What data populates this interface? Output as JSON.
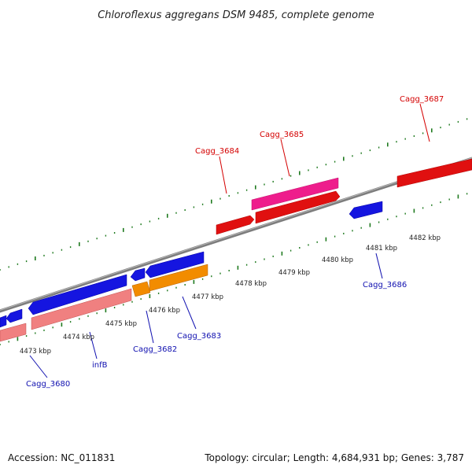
{
  "title": "Chloroflexus aggregans DSM 9485, complete genome",
  "footer": {
    "accession": "Accession: NC_011831",
    "summary": "Topology: circular; Length: 4,684,931 bp; Genes: 3,787"
  },
  "colors": {
    "backbone": "#8a8a8a",
    "tick": "#1f7a1f",
    "forward_gene": "#e01010",
    "forward_gene_alt": "#ee1d8c",
    "reverse_gene": "#1515e0",
    "reverse_rna_light": "#f08080",
    "orange_gene": "#f28c00",
    "label_forward": "#d40000",
    "label_reverse": "#1010b0"
  },
  "kbp_labels": [
    "4473 kbp",
    "4474 kbp",
    "4475 kbp",
    "4476 kbp",
    "4477 kbp",
    "4478 kbp",
    "4479 kbp",
    "4480 kbp",
    "4481 kbp",
    "4482 kbp"
  ],
  "gene_labels_forward": [
    "Cagg_3684",
    "Cagg_3685",
    "Cagg_3687"
  ],
  "gene_labels_reverse": [
    "Cagg_3680",
    "infB",
    "Cagg_3682",
    "Cagg_3683",
    "Cagg_3686"
  ]
}
